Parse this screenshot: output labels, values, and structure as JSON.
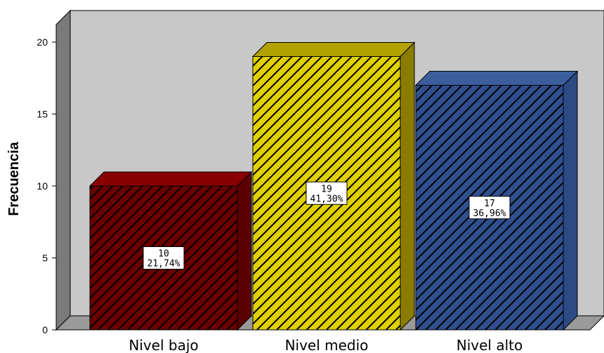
{
  "chart_data": {
    "type": "bar",
    "title": "",
    "xlabel": "",
    "ylabel": "Frecuencia",
    "ylim": [
      0,
      20
    ],
    "yticks": [
      0,
      5,
      10,
      15,
      20
    ],
    "categories": [
      "Nivel bajo",
      "Nivel medio",
      "Nivel alto"
    ],
    "values": [
      10,
      19,
      17
    ],
    "percent_labels": [
      "21,74%",
      "41,30%",
      "36,96%"
    ],
    "colors": {
      "bars": [
        "#6b0000",
        "#e0d000",
        "#2f4f8f"
      ],
      "bar_tops": [
        "#8a0000",
        "#b1a200",
        "#3d5e9d"
      ],
      "bar_sides": [
        "#5a0000",
        "#8a7c00",
        "#2c4a83"
      ],
      "wall": "#c8c8c8",
      "side_wall": "#7a7a7a",
      "floor": "#9a9a9a"
    },
    "style": "3d-hatched",
    "grid": false
  }
}
